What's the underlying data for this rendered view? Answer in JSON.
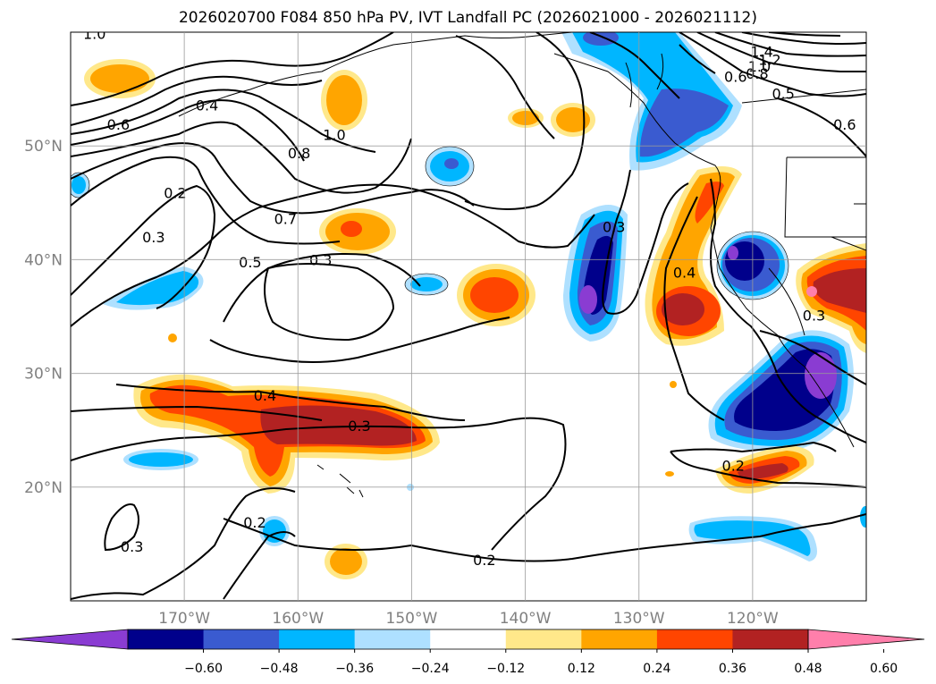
{
  "title": "2026020700 F084 850 hPa PV, IVT Landfall PC (2026021000 - 2026021112)",
  "map": {
    "lon_range": [
      -180,
      -110
    ],
    "lat_range": [
      10,
      60
    ],
    "lon_ticks": [
      {
        "lon": -170,
        "label": "170°W"
      },
      {
        "lon": -160,
        "label": "160°W"
      },
      {
        "lon": -150,
        "label": "150°W"
      },
      {
        "lon": -140,
        "label": "140°W"
      },
      {
        "lon": -130,
        "label": "130°W"
      },
      {
        "lon": -120,
        "label": "120°W"
      }
    ],
    "lat_ticks": [
      {
        "lat": 20,
        "label": "20°N"
      },
      {
        "lat": 30,
        "label": "30°N"
      },
      {
        "lat": 40,
        "label": "40°N"
      },
      {
        "lat": 50,
        "label": "50°N"
      }
    ],
    "grid": true
  },
  "colorbar": {
    "colors": [
      "#8a3cd2",
      "#00008b",
      "#3a5bd0",
      "#00b6ff",
      "#aee0ff",
      "#ffffff",
      "#ffe88a",
      "#ffa500",
      "#ff4500",
      "#b22222",
      "#ff7fab"
    ],
    "tick_labels": [
      "−0.60",
      "−0.48",
      "−0.36",
      "−0.24",
      "−0.12",
      "0.12",
      "0.24",
      "0.36",
      "0.48",
      "0.60"
    ]
  },
  "contour_labels": [
    {
      "text": "1.0",
      "lon": -177.9,
      "lat": 59.9
    },
    {
      "text": "1.4",
      "lon": -119.2,
      "lat": 58.3
    },
    {
      "text": "1.2",
      "lon": -118.5,
      "lat": 57.6
    },
    {
      "text": "1.0",
      "lon": -119.4,
      "lat": 57.0
    },
    {
      "text": "0.8",
      "lon": -119.6,
      "lat": 56.4
    },
    {
      "text": "0.6",
      "lon": -121.5,
      "lat": 56.1
    },
    {
      "text": "0.5",
      "lon": -117.3,
      "lat": 54.6
    },
    {
      "text": "0.6",
      "lon": -111.9,
      "lat": 51.9
    },
    {
      "text": "0.4",
      "lon": -168.0,
      "lat": 53.6
    },
    {
      "text": "0.6",
      "lon": -175.8,
      "lat": 51.9
    },
    {
      "text": "1.0",
      "lon": -156.8,
      "lat": 51.0
    },
    {
      "text": "0.8",
      "lon": -159.9,
      "lat": 49.4
    },
    {
      "text": "0.2",
      "lon": -170.8,
      "lat": 45.9
    },
    {
      "text": "0.7",
      "lon": -161.1,
      "lat": 43.6
    },
    {
      "text": "0.3",
      "lon": -172.7,
      "lat": 42.0
    },
    {
      "text": "0.5",
      "lon": -164.2,
      "lat": 39.8
    },
    {
      "text": "0.3",
      "lon": -158.0,
      "lat": 40.0
    },
    {
      "text": "0.3",
      "lon": -132.2,
      "lat": 42.9
    },
    {
      "text": "0.4",
      "lon": -126.0,
      "lat": 38.9
    },
    {
      "text": "0.3",
      "lon": -114.6,
      "lat": 35.1
    },
    {
      "text": "0.4",
      "lon": -162.9,
      "lat": 28.1
    },
    {
      "text": "0.3",
      "lon": -154.6,
      "lat": 25.4
    },
    {
      "text": "0.2",
      "lon": -121.7,
      "lat": 21.9
    },
    {
      "text": "0.2",
      "lon": -163.8,
      "lat": 16.9
    },
    {
      "text": "0.3",
      "lon": -174.6,
      "lat": 14.8
    },
    {
      "text": "0.2",
      "lon": -143.6,
      "lat": 13.6
    }
  ]
}
